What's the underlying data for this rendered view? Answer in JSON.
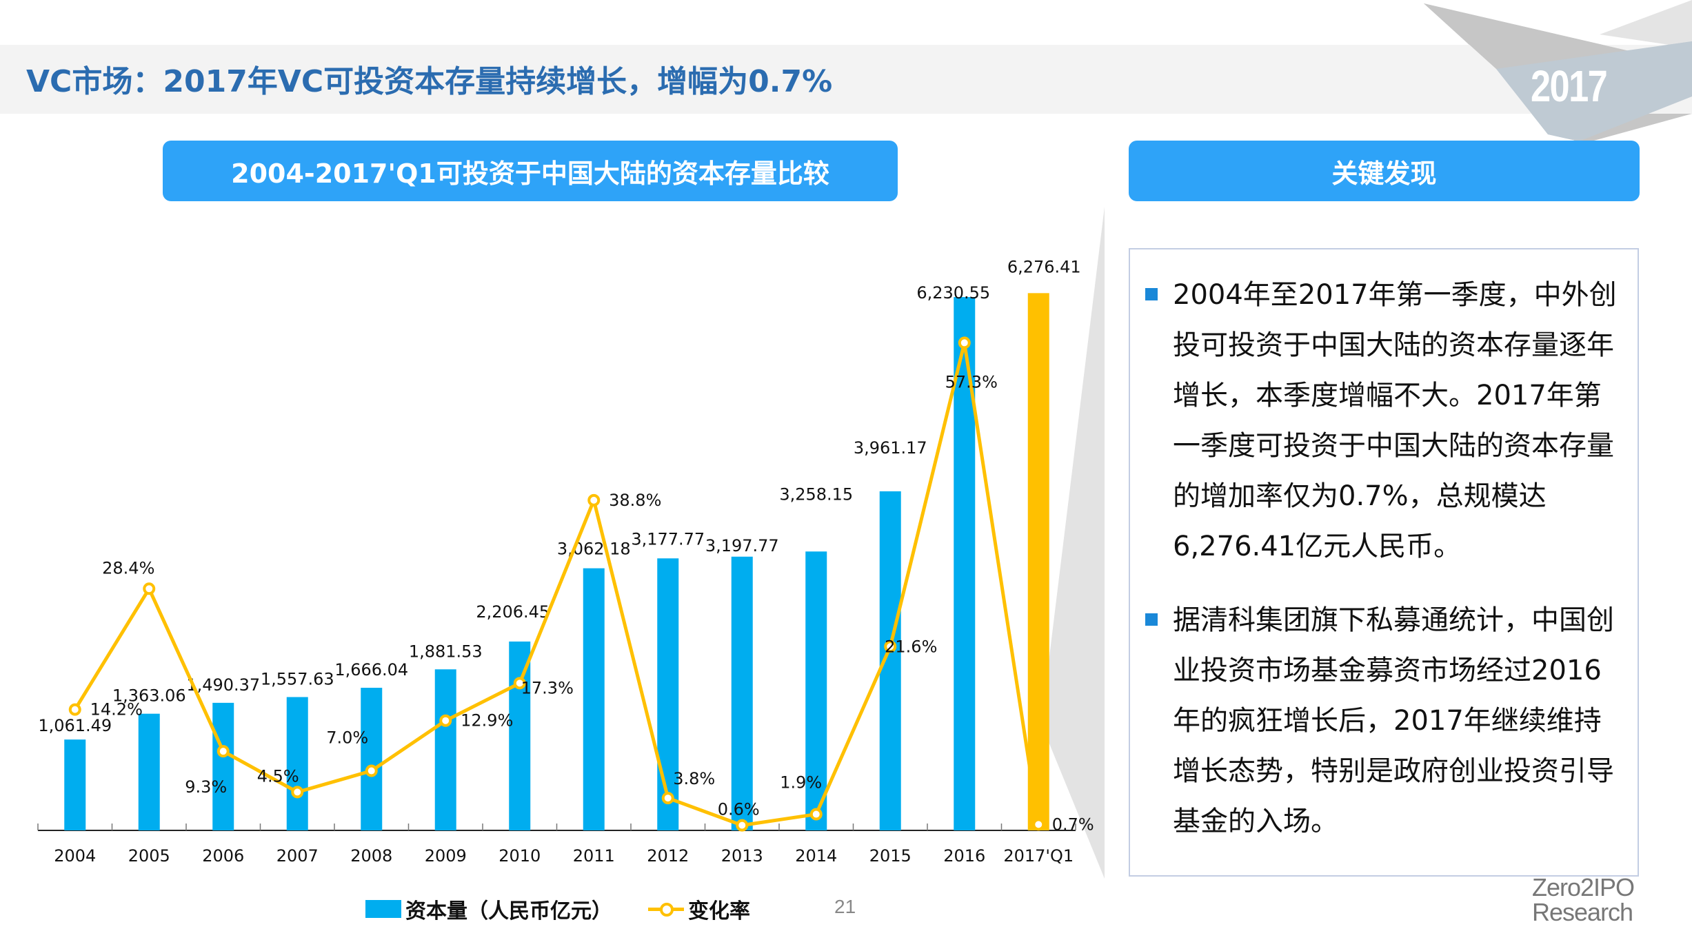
{
  "page": {
    "title": "VC市场：2017年VC可投资本存量持续增长，增幅为0.7%",
    "year_badge": "2017",
    "page_number": "21",
    "logo_line1": "Zero2IPO",
    "logo_line2": "Research",
    "colors": {
      "title": "#2b6cb0",
      "header_bg": "#2ea3f8",
      "bar": "#00adef",
      "bar_highlight": "#ffc000",
      "line": "#ffc000",
      "bullet": "#1a88d8"
    }
  },
  "chart_header": "2004-2017'Q1可投资于中国大陆的资本存量比较",
  "findings": {
    "header": "关键发现",
    "items": [
      "2004年至2017年第一季度，中外创投可投资于中国大陆的资本存量逐年增长，本季度增幅不大。2017年第一季度可投资于中国大陆的资本存量的增加率仅为0.7%，总规模达6,276.41亿元人民币。",
      "据清科集团旗下私募通统计，中国创业投资市场基金募资市场经过2016年的疯狂增长后，2017年继续维持增长态势，特别是政府创业投资引导基金的入场。"
    ]
  },
  "chart_data": {
    "type": "bar",
    "title": "2004-2017'Q1可投资于中国大陆的资本存量比较",
    "xlabel": "",
    "ylabel": "",
    "grid": false,
    "legend_placement": "bottom",
    "categories": [
      "2004",
      "2005",
      "2006",
      "2007",
      "2008",
      "2009",
      "2010",
      "2011",
      "2012",
      "2013",
      "2014",
      "2015",
      "2016",
      "2017'Q1"
    ],
    "series": [
      {
        "name": "资本量（人民币亿元）",
        "type": "bar",
        "axis": "primary",
        "values": [
          1061.49,
          1363.06,
          1490.37,
          1557.63,
          1666.04,
          1881.53,
          2206.45,
          3062.18,
          3177.77,
          3197.77,
          3258.15,
          3961.17,
          6230.55,
          6276.41
        ],
        "labels": [
          "1,061.49",
          "1,363.06",
          "1,490.37",
          "1,557.63",
          "1,666.04",
          "1,881.53",
          "2,206.45",
          "3,062.18",
          "3,177.77",
          "3,197.77",
          "3,258.15",
          "3,961.17",
          "6,230.55",
          "6,276.41"
        ],
        "highlight_index": 13
      },
      {
        "name": "变化率",
        "type": "line",
        "axis": "secondary",
        "values": [
          14.2,
          28.4,
          9.3,
          4.5,
          7.0,
          12.9,
          17.3,
          38.8,
          3.8,
          0.6,
          1.9,
          21.6,
          57.3,
          0.7
        ],
        "labels": [
          "14.2%",
          "28.4%",
          "9.3%",
          "4.5%",
          "7.0%",
          "12.9%",
          "17.3%",
          "38.8%",
          "3.8%",
          "0.6%",
          "1.9%",
          "21.6%",
          "57.3%",
          "0.7%"
        ]
      }
    ],
    "ylim_primary": [
      0,
      6400
    ],
    "ylim_secondary": [
      0,
      66
    ]
  },
  "legend": {
    "bar_label": "资本量（人民币亿元）",
    "line_label": "变化率"
  }
}
